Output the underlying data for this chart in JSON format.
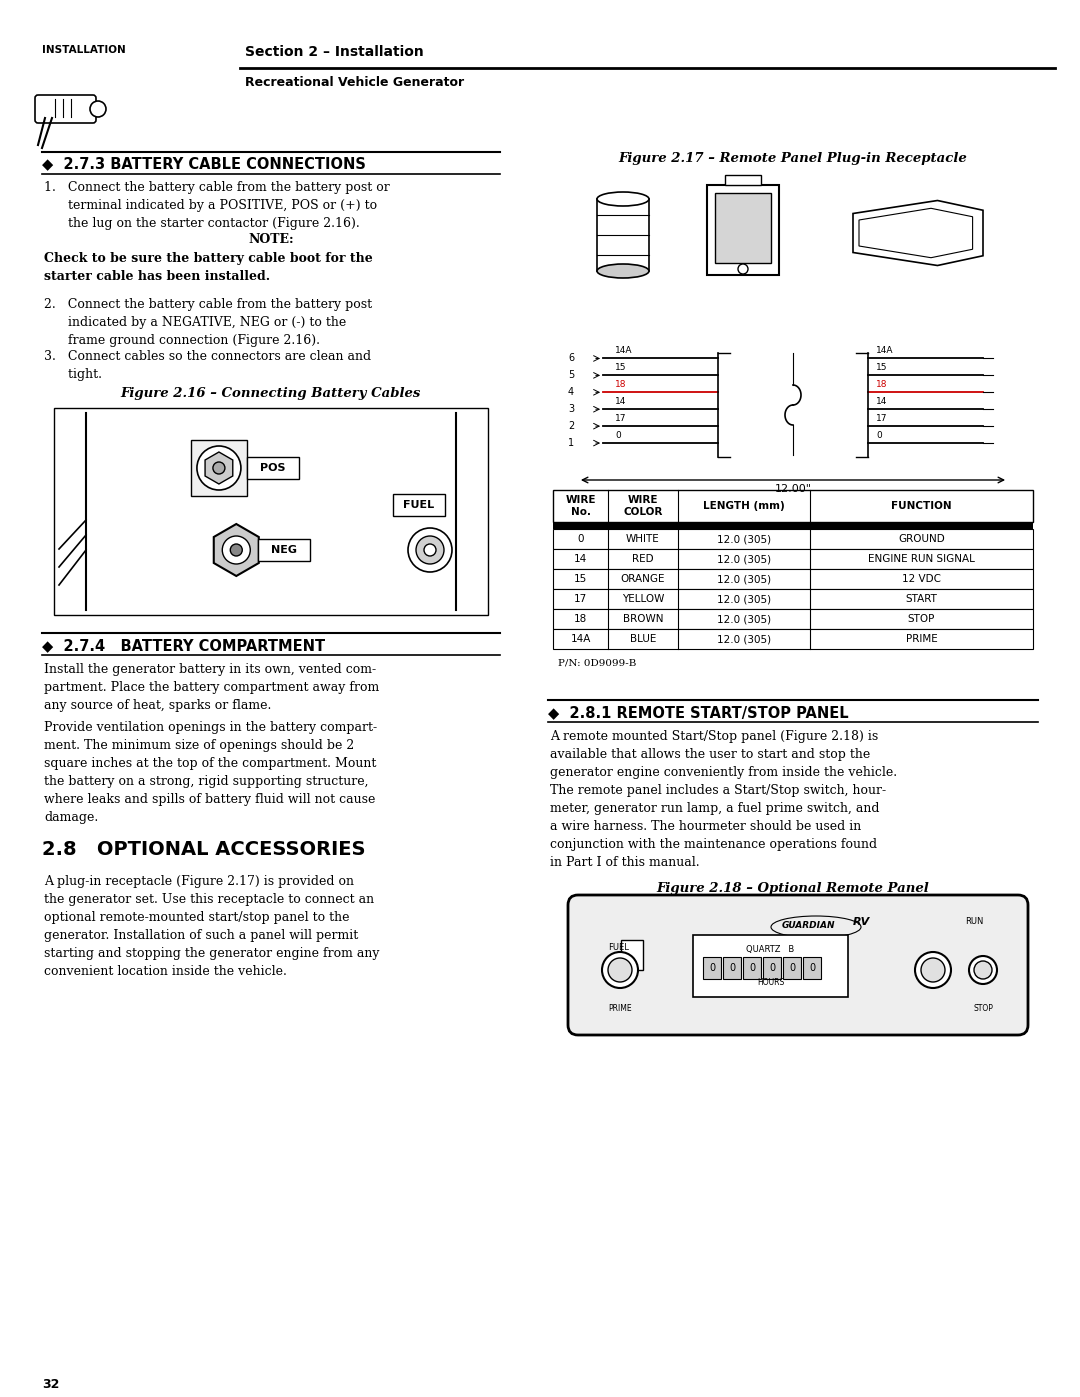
{
  "page_num": "32",
  "header_left_title": "INSTALLATION",
  "header_section": "Section 2 – Installation",
  "header_sub": "Recreational Vehicle Generator",
  "section_273_title": "◆  2.7.3 BATTERY CABLE CONNECTIONS",
  "fig216_title": "Figure 2.16 – Connecting Battery Cables",
  "fig217_title": "Figure 2.17 – Remote Panel Plug-in Receptacle",
  "section_274_title": "◆  2.7.4   BATTERY COMPARTMENT",
  "section_28_title": "2.8   OPTIONAL ACCESSORIES",
  "section_281_title": "◆  2.8.1 REMOTE START/STOP PANEL",
  "fig218_title": "Figure 2.18 – Optional Remote Panel",
  "table_headers": [
    "WIRE\nNo.",
    "WIRE\nCOLOR",
    "LENGTH (mm)",
    "FUNCTION"
  ],
  "table_rows": [
    [
      "0",
      "WHITE",
      "12.0 (305)",
      "GROUND"
    ],
    [
      "14",
      "RED",
      "12.0 (305)",
      "ENGINE RUN SIGNAL"
    ],
    [
      "15",
      "ORANGE",
      "12.0 (305)",
      "12 VDC"
    ],
    [
      "17",
      "YELLOW",
      "12.0 (305)",
      "START"
    ],
    [
      "18",
      "BROWN",
      "12.0 (305)",
      "STOP"
    ],
    [
      "14A",
      "BLUE",
      "12.0 (305)",
      "PRIME"
    ]
  ],
  "table_pn": "P/N: 0D9099-B",
  "bg_color": "#ffffff",
  "text_color": "#000000"
}
